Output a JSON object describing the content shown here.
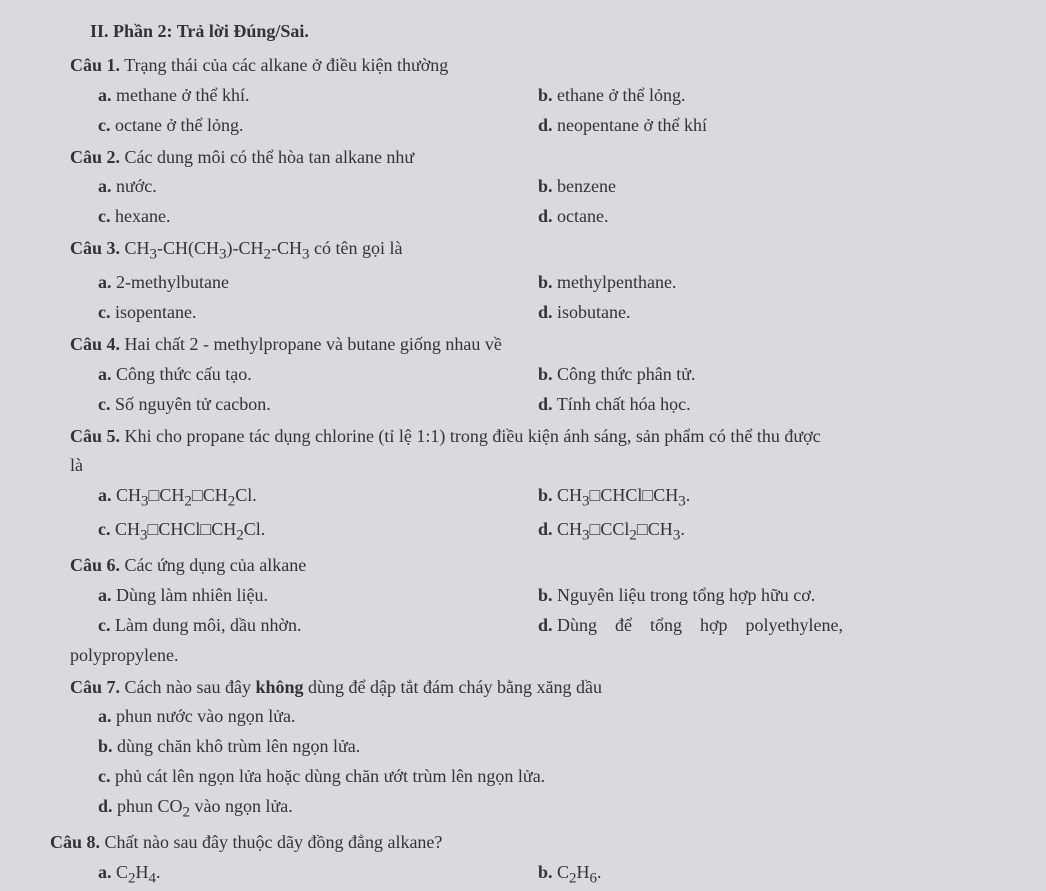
{
  "section_title": "II. Phần 2: Trả lời Đúng/Sai.",
  "questions": [
    {
      "label": "Câu 1.",
      "text": "Trạng thái của các alkane ở điều kiện thường",
      "opts": [
        {
          "tag": "a.",
          "text": "methane ở thể khí."
        },
        {
          "tag": "b.",
          "text": "ethane ở thể lỏng."
        },
        {
          "tag": "c.",
          "text": "octane ở thể lỏng."
        },
        {
          "tag": "d.",
          "text": "neopentane ở thể khí"
        }
      ]
    },
    {
      "label": "Câu 2.",
      "text": "Các dung môi có thể hòa tan alkane như",
      "opts": [
        {
          "tag": "a.",
          "text": "nước."
        },
        {
          "tag": "b.",
          "text": "benzene"
        },
        {
          "tag": "c.",
          "text": "hexane."
        },
        {
          "tag": "d.",
          "text": "octane."
        }
      ]
    },
    {
      "label": "Câu 3.",
      "text_html": "CH<sub>3</sub>-CH(CH<sub>3</sub>)-CH<sub>2</sub>-CH<sub>3</sub> có tên gọi là",
      "opts": [
        {
          "tag": "a.",
          "text": "2-methylbutane"
        },
        {
          "tag": "b.",
          "text": "methylpenthane."
        },
        {
          "tag": "c.",
          "text": "isopentane."
        },
        {
          "tag": "d.",
          "text": "isobutane."
        }
      ]
    },
    {
      "label": "Câu 4.",
      "text": "Hai chất 2 - methylpropane và butane giống nhau về",
      "opts": [
        {
          "tag": "a.",
          "text": "Công thức cấu tạo."
        },
        {
          "tag": "b.",
          "text": "Công thức phân tử."
        },
        {
          "tag": "c.",
          "text": "Số nguyên tử cacbon."
        },
        {
          "tag": "d.",
          "text": "Tính chất hóa học."
        }
      ]
    },
    {
      "label": "Câu 5.",
      "text": "Khi cho propane tác dụng chlorine (tỉ lệ 1:1) trong điều kiện ánh sáng, sản phẩm có thể thu được",
      "cont": "là",
      "opts": [
        {
          "tag": "a.",
          "html": "CH<sub>3</sub>□CH<sub>2</sub>□CH<sub>2</sub>Cl."
        },
        {
          "tag": "b.",
          "html": "CH<sub>3</sub>□CHCl□CH<sub>3</sub>."
        },
        {
          "tag": "c.",
          "html": "CH<sub>3</sub>□CHCl□CH<sub>2</sub>Cl."
        },
        {
          "tag": "d.",
          "html": "CH<sub>3</sub>□CCl<sub>2</sub>□CH<sub>3</sub>."
        }
      ]
    },
    {
      "label": "Câu 6.",
      "text": "Các ứng dụng của alkane",
      "opts": [
        {
          "tag": "a.",
          "text": "Dùng làm nhiên liệu."
        },
        {
          "tag": "b.",
          "text": "Nguyên liệu trong tổng hợp hữu cơ."
        },
        {
          "tag": "c.",
          "text": "Làm dung môi, dầu nhờn."
        },
        {
          "tag": "d.",
          "text": "Dùng để tổng hợp polyethylene,"
        }
      ],
      "cont2": "polypropylene."
    },
    {
      "label": "Câu 7.",
      "pre": "Cách nào sau đây ",
      "bold": "không",
      "post": " dùng để dập tắt đám cháy bằng xăng dầu",
      "single_opts": [
        {
          "tag": "a.",
          "text": "phun nước vào ngọn lửa."
        },
        {
          "tag": "b.",
          "text": "dùng chăn khô trùm lên ngọn lửa."
        },
        {
          "tag": "c.",
          "text": "phủ cát lên ngọn lửa hoặc dùng chăn ướt trùm lên ngọn lửa."
        },
        {
          "tag": "d.",
          "html": "phun CO<sub>2</sub> vào ngọn lửa."
        }
      ]
    },
    {
      "label": "Câu 8.",
      "text": "Chất nào sau đây thuộc dãy đồng đẳng alkane?",
      "opts": [
        {
          "tag": "a.",
          "html": "C<sub>2</sub>H<sub>4</sub>."
        },
        {
          "tag": "b.",
          "html": "C<sub>2</sub>H<sub>6</sub>."
        }
      ]
    }
  ]
}
